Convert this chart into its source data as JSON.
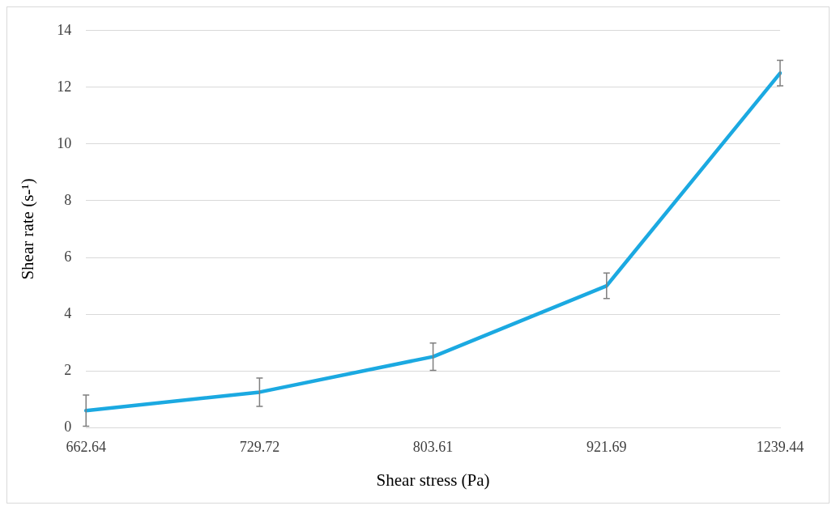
{
  "chart_data": {
    "type": "line",
    "xlabel": "Shear stress (Pa)",
    "ylabel": "Shear rate (s-¹)",
    "categories": [
      "662.64",
      "729.72",
      "803.61",
      "921.69",
      "1239.44"
    ],
    "series": [
      {
        "color": "#1ba9e1",
        "values": [
          0.6,
          1.25,
          2.5,
          5.0,
          12.5
        ],
        "errors": [
          0.55,
          0.5,
          0.48,
          0.45,
          0.45
        ]
      }
    ],
    "ylim": [
      0,
      14
    ],
    "yticks": [
      0,
      2,
      4,
      6,
      8,
      10,
      12,
      14
    ],
    "grid": "y",
    "legend": false,
    "marker": "none",
    "line_style": "solid"
  }
}
